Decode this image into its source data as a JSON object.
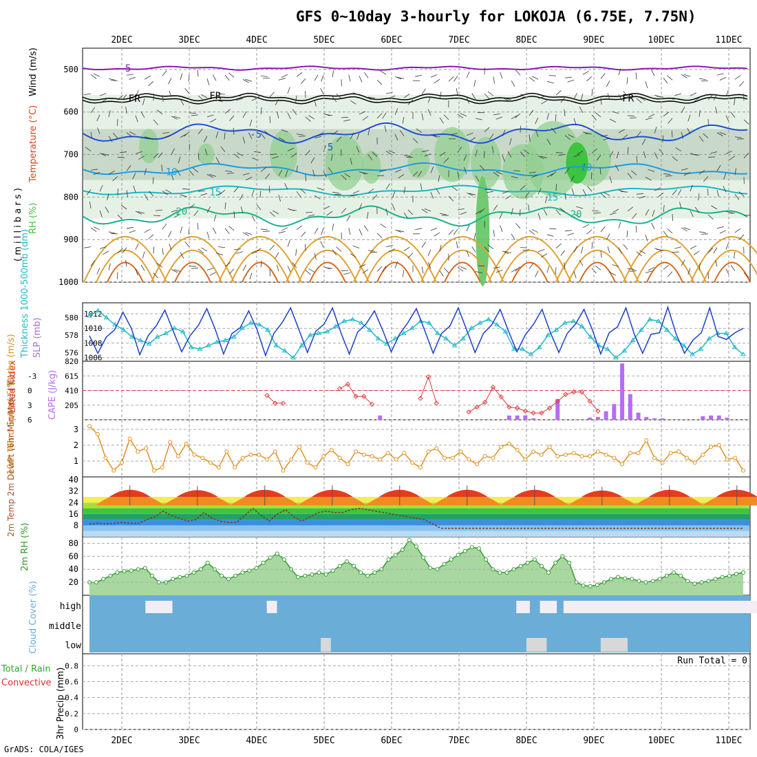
{
  "title": "GFS 0~10day 3-hourly for LOKOJA (6.75E, 7.75N)",
  "footer": "GrADS: COLA/IGES",
  "colors": {
    "freezing": "#000000",
    "iso_5": "#1d4fd6",
    "iso_10": "#1b9be0",
    "iso_15": "#1ab7c2",
    "iso_20": "#17b389",
    "iso_warm": "#e0a030",
    "iso_hot": "#d96818",
    "iso_m5": "#8a18b0",
    "rh": "#3cc43c",
    "slp": "#1a3fc8",
    "thickness": "#20b8c8",
    "lifted": "#e03838",
    "cape": "#b86cf0",
    "wind10m": "#e09020",
    "rh2m": "#2e9a2e",
    "cloud_bg": "#6aaed8",
    "cloud_fill": "#f3eef5"
  },
  "chart_data": [
    {
      "type": "heatmap",
      "name": "upper-air",
      "ylabel_parts": [
        "RH (%)",
        "Temperature (°C)",
        "Wind (m/s)"
      ],
      "ylabel_axis": "( m i l l i b a r s )",
      "y_ticks": [
        "500",
        "600",
        "700",
        "800",
        "900",
        "1000"
      ],
      "ylim": [
        450,
        1000
      ],
      "contour_labels": [
        {
          "text": "5",
          "day": 0.05,
          "p": 497
        },
        {
          "text": "FR",
          "day": 0.1,
          "p": 568
        },
        {
          "text": "FR",
          "day": 1.3,
          "p": 562
        },
        {
          "text": "FR",
          "day": 7.42,
          "p": 567
        },
        {
          "text": "-5",
          "day": 1.9,
          "p": 652
        },
        {
          "text": "5",
          "day": 3.05,
          "p": 682
        },
        {
          "text": "10",
          "day": 0.65,
          "p": 740
        },
        {
          "text": "10",
          "day": 6.8,
          "p": 730
        },
        {
          "text": "15",
          "day": 1.3,
          "p": 788
        },
        {
          "text": "15",
          "day": 6.3,
          "p": 800
        },
        {
          "text": "20",
          "day": 0.8,
          "p": 833
        },
        {
          "text": "20",
          "day": 6.65,
          "p": 840
        }
      ]
    },
    {
      "type": "line",
      "name": "slp-thickness",
      "series": [
        {
          "name": "SLP (mb)",
          "axis": "right",
          "ticks": [
            "1006",
            "1008",
            "1010",
            "1012"
          ],
          "ylim": [
            1005.5,
            1013.5
          ],
          "values": [
            1009,
            1006.6,
            1008.8,
            1009.8,
            1012.2,
            1010,
            1006.4,
            1009,
            1010.4,
            1012.5,
            1009.6,
            1006.8,
            1009,
            1010.4,
            1012.7,
            1009.9,
            1006.5,
            1009.3,
            1010.1,
            1012.4,
            1009.8,
            1006.3,
            1009.3,
            1010.8,
            1012.8,
            1009.8,
            1006.7,
            1009.6,
            1010.6,
            1012.8,
            1009.4,
            1006.5,
            1009.5,
            1010.6,
            1012.4,
            1009.7,
            1006.8,
            1009.2,
            1010.8,
            1012.7,
            1009.7,
            1006.6,
            1009.3,
            1010.3,
            1012.8,
            1009.8,
            1006.7,
            1009.3,
            1010.5,
            1012.6,
            1009.6,
            1006.8,
            1009.1,
            1010.6,
            1012.6,
            1009.4,
            1006.7,
            1009.3,
            1010.6,
            1012.6,
            1009.8,
            1006.5,
            1009.4,
            1010.2,
            1012.8,
            1009.2,
            1006.6,
            1009.2,
            1009.4,
            1012.9,
            1009.2,
            1006.6,
            1008.4,
            1009.4,
            1012.8,
            1008.9,
            1008.5,
            1009.4,
            1010
          ]
        },
        {
          "name": "Thickness 1000-500mb (dm)",
          "axis": "left",
          "ticks": [
            "576",
            "578",
            "580"
          ],
          "ylim": [
            575,
            581.7
          ],
          "values": [
            580.2,
            580.8,
            580,
            579.2,
            578.6,
            577.8,
            577.4,
            577,
            577.8,
            578.2,
            578.8,
            578.4,
            576.6,
            576.4,
            576.8,
            577.2,
            577.4,
            577.8,
            578.8,
            579.4,
            579.2,
            578.6,
            576.8,
            576.2,
            575.4,
            576.8,
            578,
            578.2,
            578.4,
            579,
            579.6,
            579.8,
            579.4,
            578.6,
            577.6,
            577,
            577.6,
            578.2,
            578.8,
            579.6,
            579.4,
            578.2,
            577.6,
            576.8,
            577.6,
            578.8,
            579.4,
            579.8,
            579.2,
            578.4,
            576.4,
            576.4,
            575.8,
            576.6,
            578,
            578.6,
            579.4,
            579.6,
            579,
            577.8,
            576.8,
            576.4,
            575.4,
            576.2,
            577.4,
            578.6,
            579.8,
            579.6,
            578.6,
            577.6,
            576.8,
            575.8,
            576.4,
            577.6,
            578.2,
            578.2,
            576.6,
            575.8
          ]
        }
      ]
    },
    {
      "type": "bar",
      "name": "lifted-cape",
      "ylabel_left": "Lifted Index",
      "ylabel_right": "CAPE (J/kg)",
      "li_ticks": [
        "-3",
        "0",
        "3",
        "6"
      ],
      "cape_ticks": [
        "205",
        "410",
        "615",
        "820"
      ],
      "li_values": [
        6,
        5.6,
        6,
        6,
        6,
        6,
        6,
        6,
        6,
        6,
        6,
        6,
        6,
        6,
        5.6,
        6,
        6,
        6,
        6,
        6,
        6,
        6,
        1,
        2.6,
        2.6,
        6,
        6,
        6,
        5.8,
        5.8,
        6,
        -0.4,
        -1.3,
        1.2,
        1.2,
        2.8,
        6,
        6,
        6,
        6,
        6,
        1.6,
        -2.8,
        2.6,
        6,
        6,
        5.8,
        4.4,
        3.4,
        2.4,
        -0.7,
        1.3,
        3.4,
        3.6,
        4.2,
        4.6,
        4.6,
        3.6,
        2.2,
        0.8,
        0.3,
        0.3,
        2.2,
        4.2,
        6,
        6,
        6,
        6,
        6,
        6,
        6,
        6,
        6,
        6,
        6,
        6,
        6,
        6,
        6,
        6,
        6,
        6
      ],
      "cape_values": [
        0,
        0,
        0,
        0,
        0,
        0,
        0,
        0,
        0,
        0,
        0,
        0,
        0,
        0,
        0,
        0,
        0,
        0,
        0,
        0,
        0,
        0,
        0,
        0,
        0,
        0,
        0,
        0,
        0,
        0,
        0,
        0,
        0,
        0,
        0,
        0,
        60,
        0,
        0,
        0,
        0,
        0,
        0,
        0,
        0,
        0,
        0,
        0,
        0,
        0,
        0,
        0,
        60,
        60,
        60,
        20,
        0,
        0,
        290,
        0,
        0,
        0,
        30,
        40,
        120,
        220,
        790,
        360,
        100,
        40,
        20,
        20,
        0,
        0,
        0,
        0,
        50,
        60,
        60,
        30,
        0,
        0
      ]
    },
    {
      "type": "line",
      "name": "wind10m",
      "ylabel": "10m Wind Speed & Barbs (m/s)",
      "ticks": [
        "1",
        "2",
        "3"
      ],
      "ylim": [
        0,
        3.6
      ],
      "values": [
        3.2,
        2.7,
        1.2,
        0.4,
        0.9,
        2.4,
        1.6,
        1.8,
        0.4,
        0.6,
        2.2,
        1.3,
        2.1,
        1.4,
        1.2,
        0.9,
        0.6,
        1.6,
        0.6,
        1.2,
        1.4,
        1.4,
        1.1,
        1.6,
        0.4,
        1.1,
        1.9,
        0.9,
        0.6,
        1.3,
        1.7,
        1.2,
        0.8,
        1.6,
        1.4,
        1.3,
        1.1,
        1.5,
        1.1,
        1.5,
        0.9,
        0.6,
        1.6,
        1.8,
        1.2,
        1.2,
        1.6,
        1.1,
        0.8,
        1.3,
        1.2,
        1.9,
        2.1,
        1.7,
        1.1,
        1.6,
        1.4,
        1.9,
        1.3,
        1.4,
        1.5,
        1.3,
        1.3,
        1.6,
        1.4,
        1.2,
        0.8,
        1.5,
        1.5,
        2.3,
        1.2,
        0.9,
        1.5,
        1.6,
        1.2,
        0.9,
        1.4,
        1.9,
        2,
        1.1,
        1.2,
        0.4
      ]
    },
    {
      "type": "area",
      "name": "temp-dewpt",
      "ylabel": "2m Temp 2m DewPt (6hr Min/Max) (°C)",
      "ticks": [
        "8",
        "16",
        "24",
        "32",
        "40"
      ],
      "ylim": [
        0,
        42
      ],
      "temp_min": [
        22,
        22,
        22,
        22,
        22,
        22,
        22,
        22,
        22,
        22
      ],
      "temp_max": [
        36,
        35.5,
        36,
        36,
        36,
        36,
        36,
        35,
        36,
        36
      ],
      "dew_values": [
        9,
        9.5,
        9.2,
        9.4,
        10,
        9.4,
        9.4,
        12,
        14,
        18,
        15,
        13,
        11,
        12,
        17,
        13,
        11,
        10,
        10,
        15,
        20,
        15,
        11,
        16,
        19,
        14,
        11,
        14,
        17,
        18,
        17,
        17,
        19,
        20,
        19,
        18,
        17,
        16,
        15,
        14,
        13,
        12,
        9,
        6,
        6,
        6,
        6,
        6,
        6,
        6,
        6,
        6,
        6,
        6,
        6,
        6,
        6,
        6,
        6,
        6,
        6,
        6,
        6,
        6,
        6,
        6,
        6,
        6,
        6,
        6,
        6,
        6,
        6,
        6,
        6,
        6,
        6,
        6,
        6,
        6,
        6
      ]
    },
    {
      "type": "area",
      "name": "rh2m",
      "ylabel": "2m RH (%)",
      "ticks": [
        "20",
        "40",
        "60",
        "80"
      ],
      "ylim": [
        0,
        90
      ],
      "values": [
        20,
        20,
        25,
        30,
        35,
        37,
        38,
        40,
        42,
        30,
        20,
        20,
        25,
        28,
        30,
        35,
        40,
        50,
        40,
        30,
        25,
        30,
        35,
        38,
        42,
        50,
        58,
        64,
        55,
        40,
        28,
        30,
        32,
        35,
        32,
        38,
        45,
        52,
        45,
        35,
        30,
        35,
        40,
        55,
        62,
        70,
        85,
        75,
        58,
        42,
        40,
        48,
        55,
        62,
        68,
        74,
        72,
        55,
        40,
        35,
        35,
        40,
        45,
        50,
        55,
        45,
        35,
        50,
        60,
        50,
        20,
        15,
        14,
        16,
        20,
        25,
        28,
        26,
        25,
        22,
        20,
        22,
        25,
        30,
        35,
        30,
        22,
        18,
        20,
        22,
        25,
        28,
        30,
        33,
        35
      ]
    },
    {
      "type": "heatmap",
      "name": "cloud-cover",
      "ylabel": "Cloud Cover (%)",
      "levels": [
        "high",
        "middle",
        "low"
      ],
      "high_segments": [
        [
          0.35,
          0.75
        ],
        [
          2.15,
          2.3
        ],
        [
          5.85,
          6.05
        ],
        [
          6.2,
          6.45
        ],
        [
          6.55,
          10.3
        ]
      ],
      "low_segments": [
        [
          2.95,
          3.1
        ],
        [
          6.0,
          6.3
        ],
        [
          7.1,
          7.5
        ]
      ]
    },
    {
      "type": "bar",
      "name": "precip3hr",
      "ylabel": "3hr Precip (mm)",
      "legend": [
        "Total / Rain",
        "Convective"
      ],
      "run_total": "Run Total = 0",
      "ticks": [
        "0",
        "0.2",
        "0.4",
        "0.6",
        "0.8"
      ],
      "ylim": [
        0,
        0.95
      ],
      "values": []
    }
  ],
  "x_axis": {
    "day_labels": [
      "2DEC",
      "3DEC",
      "4DEC",
      "5DEC",
      "6DEC",
      "7DEC",
      "8DEC",
      "9DEC",
      "10DEC",
      "11DEC"
    ]
  }
}
